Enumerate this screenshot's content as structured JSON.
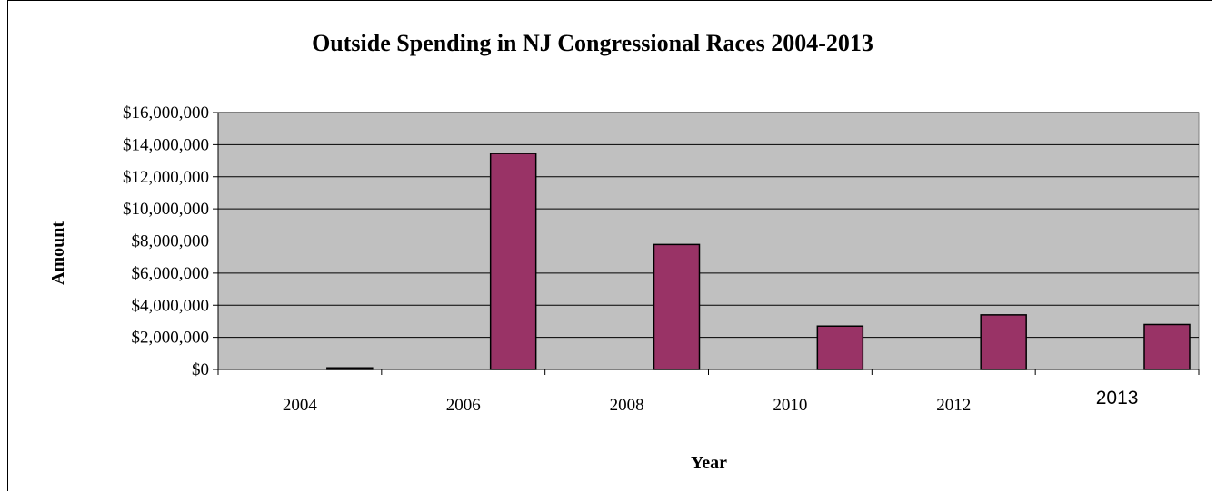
{
  "chart_data": {
    "type": "bar",
    "title": "Outside Spending in NJ Congressional Races 2004-2013",
    "xlabel": "Year",
    "ylabel": "Amount",
    "categories": [
      "2004",
      "2006",
      "2008",
      "2010",
      "2012",
      "2013"
    ],
    "values": [
      100000,
      13450000,
      7780000,
      2700000,
      3400000,
      2800000
    ],
    "ylim": [
      0,
      16000000
    ],
    "yticks": [
      0,
      2000000,
      4000000,
      6000000,
      8000000,
      10000000,
      12000000,
      14000000,
      16000000
    ],
    "ytick_labels": [
      "$0",
      "$2,000,000",
      "$4,000,000",
      "$6,000,000",
      "$8,000,000",
      "$10,000,000",
      "$12,000,000",
      "$14,000,000",
      "$16,000,000"
    ],
    "grid": true,
    "legend": "none",
    "colors": {
      "bar": "#993366",
      "plot_background": "#c0c0c0",
      "gridline": "#000000"
    }
  }
}
